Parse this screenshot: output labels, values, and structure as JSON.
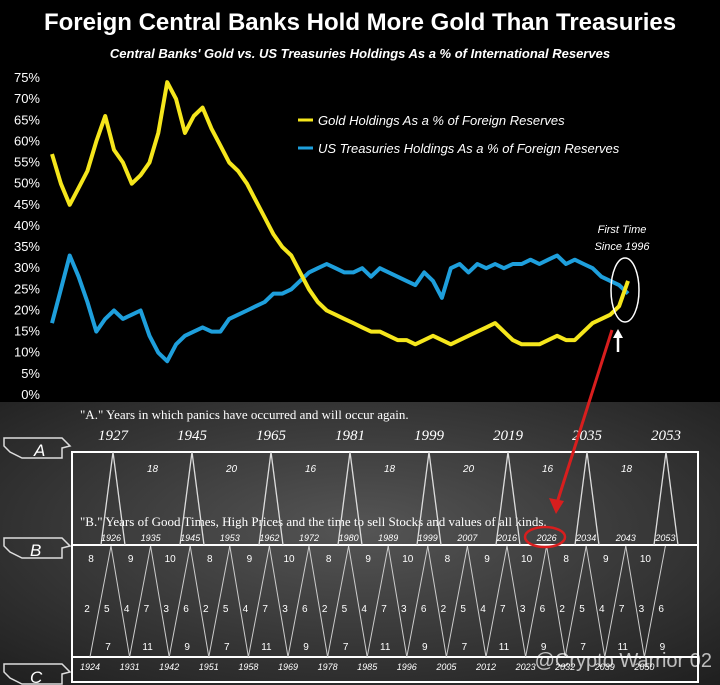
{
  "top_chart": {
    "colors": {
      "gold": "#f5e61c",
      "treasuries": "#1e9fdc",
      "annotation": "#d81e1e",
      "background": "#000000"
    },
    "annotation": {
      "line1": "First Time",
      "line2": "Since 1996"
    }
  },
  "chart_data": [
    {
      "type": "line",
      "title": "Foreign Central Banks Hold More Gold Than Treasuries",
      "subtitle": "Central Banks' Gold vs. US Treasuries Holdings As a % of International Reserves",
      "xlabel": "",
      "ylabel": "",
      "ylim": [
        0,
        75
      ],
      "xlim": [
        1960,
        2025
      ],
      "y_ticks": [
        "0%",
        "5%",
        "10%",
        "15%",
        "20%",
        "25%",
        "30%",
        "35%",
        "40%",
        "45%",
        "50%",
        "55%",
        "60%",
        "65%",
        "70%",
        "75%"
      ],
      "grid": false,
      "legend": "top-right",
      "series": [
        {
          "name": "Gold Holdings As a % of Foreign Reserves",
          "x": [
            1960,
            1961,
            1962,
            1963,
            1964,
            1965,
            1966,
            1967,
            1968,
            1969,
            1970,
            1971,
            1972,
            1973,
            1974,
            1975,
            1976,
            1977,
            1978,
            1979,
            1980,
            1981,
            1982,
            1983,
            1984,
            1985,
            1986,
            1987,
            1988,
            1989,
            1990,
            1991,
            1992,
            1993,
            1994,
            1995,
            1996,
            1997,
            1998,
            1999,
            2000,
            2001,
            2002,
            2003,
            2004,
            2005,
            2006,
            2007,
            2008,
            2009,
            2010,
            2011,
            2012,
            2013,
            2014,
            2015,
            2016,
            2017,
            2018,
            2019,
            2020,
            2021,
            2022,
            2023,
            2024,
            2025
          ],
          "values": [
            57,
            50,
            45,
            49,
            53,
            60,
            66,
            58,
            55,
            50,
            52,
            55,
            62,
            74,
            70,
            62,
            66,
            68,
            63,
            59,
            55,
            53,
            50,
            46,
            42,
            38,
            35,
            33,
            29,
            25,
            22,
            20,
            19,
            18,
            17,
            16,
            15,
            15,
            14,
            13,
            13,
            12,
            13,
            14,
            13,
            12,
            13,
            14,
            15,
            16,
            17,
            15,
            13,
            12,
            12,
            12,
            13,
            14,
            13,
            13,
            15,
            17,
            18,
            19,
            21,
            27
          ]
        },
        {
          "name": "US Treasuries Holdings As a % of Foreign Reserves",
          "x": [
            1960,
            1961,
            1962,
            1963,
            1964,
            1965,
            1966,
            1967,
            1968,
            1969,
            1970,
            1971,
            1972,
            1973,
            1974,
            1975,
            1976,
            1977,
            1978,
            1979,
            1980,
            1981,
            1982,
            1983,
            1984,
            1985,
            1986,
            1987,
            1988,
            1989,
            1990,
            1991,
            1992,
            1993,
            1994,
            1995,
            1996,
            1997,
            1998,
            1999,
            2000,
            2001,
            2002,
            2003,
            2004,
            2005,
            2006,
            2007,
            2008,
            2009,
            2010,
            2011,
            2012,
            2013,
            2014,
            2015,
            2016,
            2017,
            2018,
            2019,
            2020,
            2021,
            2022,
            2023,
            2024,
            2025
          ],
          "values": [
            17,
            25,
            33,
            28,
            22,
            15,
            18,
            20,
            18,
            19,
            20,
            14,
            10,
            8,
            12,
            14,
            15,
            16,
            15,
            15,
            18,
            19,
            20,
            21,
            22,
            24,
            24,
            25,
            27,
            29,
            30,
            31,
            30,
            29,
            29,
            30,
            28,
            30,
            29,
            28,
            27,
            26,
            29,
            27,
            23,
            30,
            31,
            29,
            31,
            30,
            31,
            30,
            31,
            31,
            32,
            31,
            32,
            33,
            31,
            32,
            31,
            30,
            28,
            27,
            26,
            24
          ]
        }
      ]
    },
    {
      "type": "table",
      "title": "",
      "section_a": {
        "letter": "A",
        "caption": "\"A.\" Years in which panics have occurred and will occur again.",
        "years": [
          "1927",
          "1945",
          "1965",
          "1981",
          "1999",
          "2019",
          "2035",
          "2053"
        ],
        "intervals": [
          "18",
          "20",
          "16",
          "18",
          "20",
          "16",
          "18"
        ]
      },
      "section_b": {
        "letter": "B",
        "caption": "\"B.\" Years of Good Times, High Prices and the time to sell Stocks and values of all kinds.",
        "years": [
          "1926",
          "1935",
          "1945",
          "1953",
          "1962",
          "1972",
          "1980",
          "1989",
          "1999",
          "2007",
          "2016",
          "2026",
          "2034",
          "2043",
          "2053"
        ],
        "highlighted_year": "2026",
        "top_intervals": [
          "8",
          "9",
          "10",
          "8",
          "9",
          "10",
          "8",
          "9",
          "10",
          "8",
          "9",
          "10",
          "8",
          "9",
          "10"
        ],
        "mid_intervals": [
          "2",
          "5",
          "4",
          "7",
          "3",
          "6",
          "2",
          "5",
          "4",
          "7",
          "3",
          "6",
          "2",
          "5",
          "4",
          "7",
          "3",
          "6",
          "2",
          "5",
          "4",
          "7",
          "3",
          "6",
          "2",
          "5",
          "4",
          "7",
          "3",
          "6"
        ],
        "bottom_intervals": [
          "7",
          "11",
          "9",
          "7",
          "11",
          "9",
          "7",
          "11",
          "9",
          "7",
          "11",
          "9",
          "7",
          "11",
          "9"
        ]
      },
      "section_c": {
        "letter": "C",
        "years": [
          "1924",
          "1931",
          "1942",
          "1951",
          "1958",
          "1969",
          "1978",
          "1985",
          "1996",
          "2005",
          "2012",
          "2023",
          "2032",
          "2039",
          "2050"
        ]
      }
    }
  ],
  "watermark": "@Crypto Warrior 02"
}
